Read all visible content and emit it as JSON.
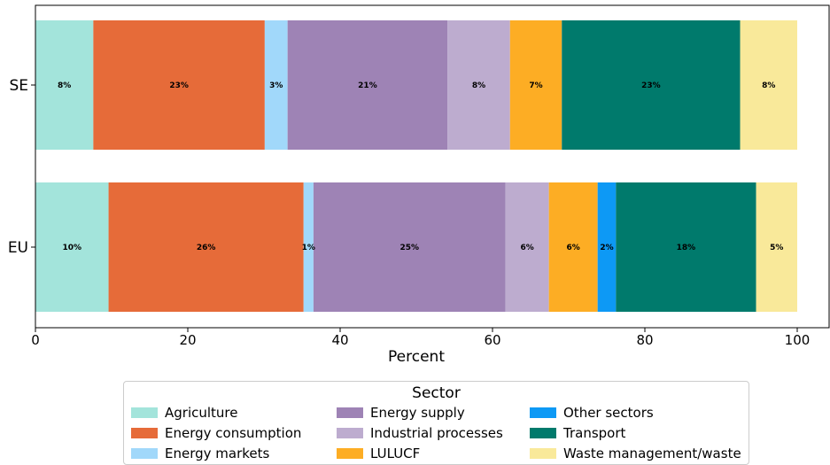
{
  "chart_data": {
    "type": "bar",
    "orientation": "horizontal",
    "stacked": true,
    "categories": [
      "SE",
      "EU"
    ],
    "xlabel": "Percent",
    "xlim": [
      0,
      100
    ],
    "xticks": [
      0,
      20,
      40,
      60,
      80,
      100
    ],
    "grid": false,
    "series": [
      {
        "name": "Agriculture",
        "color": "#a3e4db",
        "values": [
          7.6,
          9.6
        ],
        "labels": [
          "8%",
          "10%"
        ]
      },
      {
        "name": "Energy consumption",
        "color": "#e66b39",
        "values": [
          22.5,
          25.6
        ],
        "labels": [
          "23%",
          "26%"
        ]
      },
      {
        "name": "Energy markets",
        "color": "#a1d8fa",
        "values": [
          3.0,
          1.3
        ],
        "labels": [
          "3%",
          "1%"
        ]
      },
      {
        "name": "Energy supply",
        "color": "#9e83b5",
        "values": [
          21.0,
          25.2
        ],
        "labels": [
          "21%",
          "25%"
        ]
      },
      {
        "name": "Industrial processes",
        "color": "#bdaccf",
        "values": [
          8.2,
          5.7
        ],
        "labels": [
          "8%",
          "6%"
        ]
      },
      {
        "name": "LULUCF",
        "color": "#fdad24",
        "values": [
          6.8,
          6.4
        ],
        "labels": [
          "7%",
          "6%"
        ]
      },
      {
        "name": "Other sectors",
        "color": "#0d99f5",
        "values": [
          0.0,
          2.4
        ],
        "labels": [
          "",
          "2%"
        ]
      },
      {
        "name": "Transport",
        "color": "#007a6c",
        "values": [
          23.4,
          18.4
        ],
        "labels": [
          "23%",
          "18%"
        ]
      },
      {
        "name": "Waste management/waste",
        "color": "#f9e99a",
        "values": [
          7.5,
          5.4
        ],
        "labels": [
          "8%",
          "5%"
        ]
      }
    ],
    "legend": {
      "title": "Sector",
      "placement": "bottom-center",
      "columns": 3
    }
  }
}
